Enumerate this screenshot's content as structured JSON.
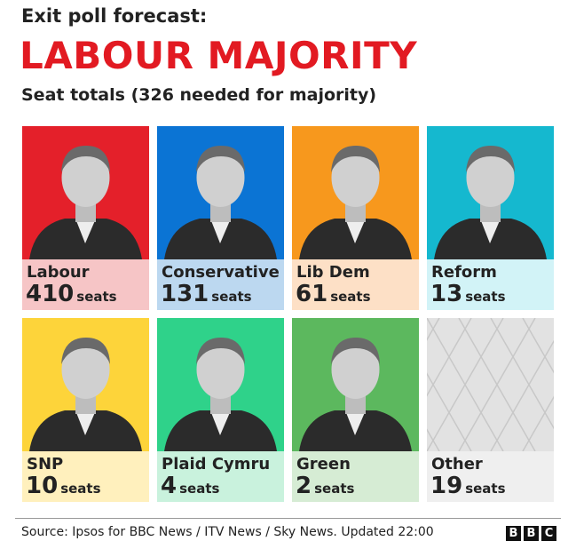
{
  "header": {
    "kicker": "Exit poll forecast:",
    "title": "LABOUR MAJORITY",
    "subtitle": "Seat totals (326 needed for majority)"
  },
  "cards": [
    {
      "party": "Labour",
      "seats": 410,
      "unit": "seats",
      "color": "#e4202a",
      "label_color": "#f6c5c6"
    },
    {
      "party": "Conservative",
      "seats": 131,
      "unit": "seats",
      "color": "#0b74d4",
      "label_color": "#bcd8f0"
    },
    {
      "party": "Lib Dem",
      "seats": 61,
      "unit": "seats",
      "color": "#f7981d",
      "label_color": "#fde0c6"
    },
    {
      "party": "Reform",
      "seats": 13,
      "unit": "seats",
      "color": "#15b8cf",
      "label_color": "#d2f3f7"
    },
    {
      "party": "SNP",
      "seats": 10,
      "unit": "seats",
      "color": "#fdd43a",
      "label_color": "#fff0bd"
    },
    {
      "party": "Plaid Cymru",
      "seats": 4,
      "unit": "seats",
      "color": "#2fd28a",
      "label_color": "#c9f2dd"
    },
    {
      "party": "Green",
      "seats": 2,
      "unit": "seats",
      "color": "#5cb85e",
      "label_color": "#d6ecd4"
    },
    {
      "party": "Other",
      "seats": 19,
      "unit": "seats",
      "color": "#e2e2e2",
      "label_color": "#efefef"
    }
  ],
  "footer": {
    "source": "Source: Ipsos for BBC News / ITV News / Sky News. Updated 22:00",
    "logo": [
      "B",
      "B",
      "C"
    ]
  }
}
